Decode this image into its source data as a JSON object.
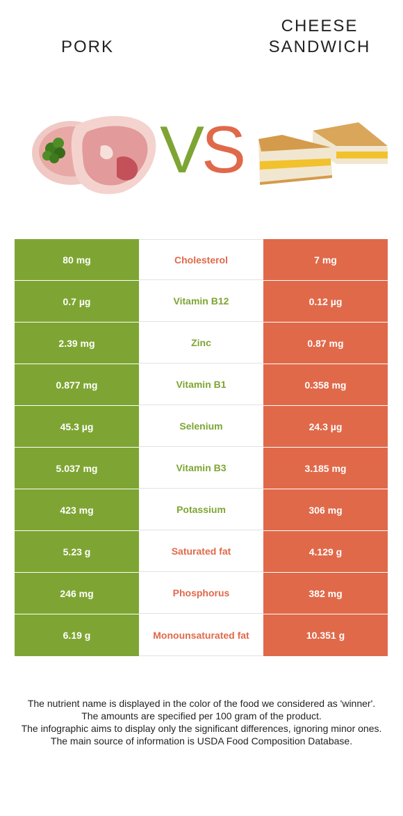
{
  "header": {
    "left_food": "PORK",
    "right_food_line1": "CHEESE",
    "right_food_line2": "SANDWICH",
    "vs_left_letter": "V",
    "vs_right_letter": "S"
  },
  "colors": {
    "pork": "#7ea533",
    "cheese_sandwich": "#e0694a"
  },
  "icons": {
    "left_image": "pork-chop-icon",
    "right_image": "grilled-cheese-sandwich-icon"
  },
  "rows": [
    {
      "left": "80 mg",
      "nutrient": "Cholesterol",
      "right": "7 mg",
      "winner": "cheese_sandwich",
      "winner_color": "#e0694a"
    },
    {
      "left": "0.7 µg",
      "nutrient": "Vitamin B12",
      "right": "0.12 µg",
      "winner": "pork",
      "winner_color": "#7ea533"
    },
    {
      "left": "2.39 mg",
      "nutrient": "Zinc",
      "right": "0.87 mg",
      "winner": "pork",
      "winner_color": "#7ea533"
    },
    {
      "left": "0.877 mg",
      "nutrient": "Vitamin B1",
      "right": "0.358 mg",
      "winner": "pork",
      "winner_color": "#7ea533"
    },
    {
      "left": "45.3 µg",
      "nutrient": "Selenium",
      "right": "24.3 µg",
      "winner": "pork",
      "winner_color": "#7ea533"
    },
    {
      "left": "5.037 mg",
      "nutrient": "Vitamin B3",
      "right": "3.185 mg",
      "winner": "pork",
      "winner_color": "#7ea533"
    },
    {
      "left": "423 mg",
      "nutrient": "Potassium",
      "right": "306 mg",
      "winner": "pork",
      "winner_color": "#7ea533"
    },
    {
      "left": "5.23 g",
      "nutrient": "Saturated fat",
      "right": "4.129 g",
      "winner": "cheese_sandwich",
      "winner_color": "#e0694a"
    },
    {
      "left": "246 mg",
      "nutrient": "Phosphorus",
      "right": "382 mg",
      "winner": "cheese_sandwich",
      "winner_color": "#e0694a"
    },
    {
      "left": "6.19 g",
      "nutrient": "Monounsaturated fat",
      "right": "10.351 g",
      "winner": "cheese_sandwich",
      "winner_color": "#e0694a"
    }
  ],
  "footnote": {
    "line1": "The nutrient name is displayed in the color of the food we considered as 'winner'.",
    "line2": "The amounts are specified per 100 gram of the product.",
    "line3": "The infographic aims to display only the significant differences, ignoring minor ones.",
    "line4": "The main source of information is USDA Food Composition Database."
  }
}
